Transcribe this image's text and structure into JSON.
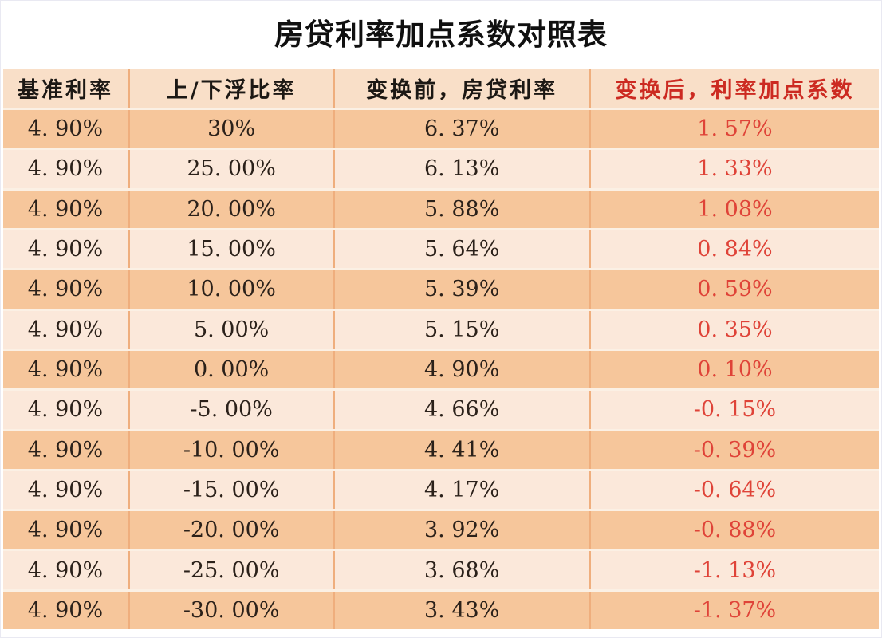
{
  "title": "房贷利率加点系数对照表",
  "chart_data": {
    "type": "table",
    "title": "房贷利率加点系数对照表",
    "columns": [
      "基准利率",
      "上/下浮比率",
      "变换前，房贷利率",
      "变换后，利率加点系数"
    ],
    "rows": [
      [
        "4. 90%",
        "30%",
        "6. 37%",
        "1. 57%"
      ],
      [
        "4. 90%",
        "25. 00%",
        "6. 13%",
        "1. 33%"
      ],
      [
        "4. 90%",
        "20. 00%",
        "5. 88%",
        "1. 08%"
      ],
      [
        "4. 90%",
        "15. 00%",
        "5. 64%",
        "0. 84%"
      ],
      [
        "4. 90%",
        "10. 00%",
        "5. 39%",
        "0. 59%"
      ],
      [
        "4. 90%",
        "5. 00%",
        "5. 15%",
        "0. 35%"
      ],
      [
        "4. 90%",
        "0. 00%",
        "4. 90%",
        "0. 10%"
      ],
      [
        "4. 90%",
        "-5. 00%",
        "4. 66%",
        "-0. 15%"
      ],
      [
        "4. 90%",
        "-10. 00%",
        "4. 41%",
        "-0. 39%"
      ],
      [
        "4. 90%",
        "-15. 00%",
        "4. 17%",
        "-0. 64%"
      ],
      [
        "4. 90%",
        "-20. 00%",
        "3. 92%",
        "-0. 88%"
      ],
      [
        "4. 90%",
        "-25. 00%",
        "3. 68%",
        "-1. 13%"
      ],
      [
        "4. 90%",
        "-30. 00%",
        "3. 43%",
        "-1. 37%"
      ]
    ],
    "numeric": {
      "base_rate_pct": [
        4.9,
        4.9,
        4.9,
        4.9,
        4.9,
        4.9,
        4.9,
        4.9,
        4.9,
        4.9,
        4.9,
        4.9,
        4.9
      ],
      "float_ratio_pct": [
        30,
        25,
        20,
        15,
        10,
        5,
        0,
        -5,
        -10,
        -15,
        -20,
        -25,
        -30
      ],
      "rate_before_pct": [
        6.37,
        6.13,
        5.88,
        5.64,
        5.39,
        5.15,
        4.9,
        4.66,
        4.41,
        4.17,
        3.92,
        3.68,
        3.43
      ],
      "coefficient_after_pct": [
        1.57,
        1.33,
        1.08,
        0.84,
        0.59,
        0.35,
        0.1,
        -0.15,
        -0.39,
        -0.64,
        -0.88,
        -1.13,
        -1.37
      ]
    },
    "layout": {
      "header_text_colors": [
        "black",
        "black",
        "black",
        "red"
      ],
      "value_text_colors": [
        "dark",
        "dark",
        "dark",
        "red"
      ],
      "row_striping": "odd rows darker orange, even rows light peach"
    }
  },
  "colors": {
    "row_dark": "#F6C69B",
    "row_light": "#FBE8DA",
    "header_bg": "#F9DFC8",
    "column_border": "#EFAE7D",
    "row_gap": "#FBF0E4",
    "text_dark": "#2B211A",
    "red_header": "#CC2A21",
    "red_value": "#DF4338",
    "background": "#FFFFFF"
  }
}
